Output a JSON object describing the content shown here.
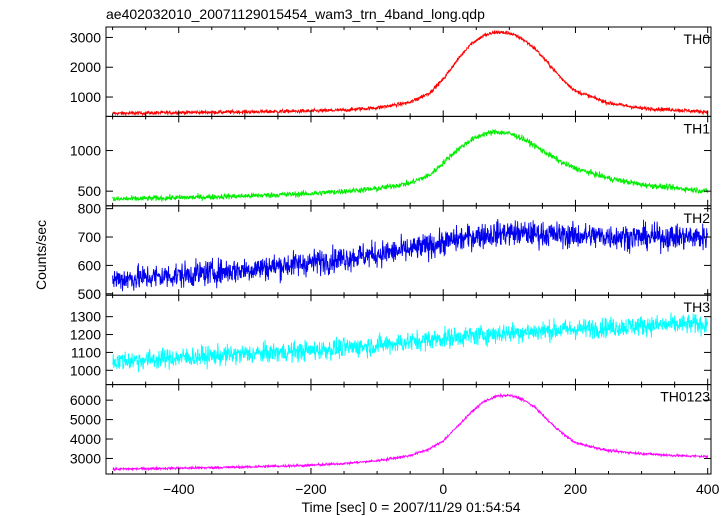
{
  "chart_data": {
    "type": "line",
    "title": "ae402032010_20071129015454_wam3_trn_4band_long.qdp",
    "xlabel": "Time [sec] 0 = 2007/11/29 01:54:54",
    "ylabel": "Counts/sec",
    "xlim": [
      -510,
      405
    ],
    "x_ticks": [
      -400,
      -200,
      0,
      200,
      400
    ],
    "grid": false,
    "panels": [
      {
        "name": "TH0",
        "color": "#ff0000",
        "ylim": [
          350,
          3350
        ],
        "y_ticks": [
          1000,
          2000,
          3000
        ],
        "noise": 45,
        "x": [
          -500,
          -400,
          -300,
          -200,
          -150,
          -100,
          -50,
          -20,
          0,
          20,
          40,
          60,
          80,
          100,
          120,
          140,
          160,
          180,
          200,
          250,
          300,
          350,
          400
        ],
        "y": [
          450,
          480,
          500,
          530,
          560,
          640,
          820,
          1150,
          1600,
          2200,
          2750,
          3050,
          3180,
          3150,
          2950,
          2600,
          2100,
          1600,
          1200,
          800,
          620,
          570,
          500
        ]
      },
      {
        "name": "TH1",
        "color": "#00ee00",
        "ylim": [
          320,
          1420
        ],
        "y_ticks": [
          500,
          1000
        ],
        "noise": 25,
        "x": [
          -500,
          -400,
          -300,
          -200,
          -150,
          -100,
          -50,
          -20,
          0,
          20,
          40,
          60,
          80,
          100,
          120,
          140,
          160,
          180,
          200,
          250,
          300,
          350,
          400
        ],
        "y": [
          400,
          420,
          440,
          470,
          500,
          530,
          600,
          700,
          850,
          1000,
          1120,
          1200,
          1230,
          1210,
          1150,
          1050,
          950,
          850,
          780,
          660,
          580,
          540,
          500
        ]
      },
      {
        "name": "TH2",
        "color": "#0000ee",
        "ylim": [
          495,
          810
        ],
        "y_ticks": [
          500,
          600,
          700,
          800
        ],
        "noise": 32,
        "x": [
          -500,
          -400,
          -300,
          -200,
          -100,
          -50,
          0,
          50,
          100,
          150,
          200,
          300,
          400
        ],
        "y": [
          550,
          565,
          585,
          610,
          640,
          655,
          680,
          705,
          715,
          710,
          705,
          700,
          700
        ]
      },
      {
        "name": "TH3",
        "color": "#00ffff",
        "ylim": [
          920,
          1420
        ],
        "y_ticks": [
          1000,
          1100,
          1200,
          1300
        ],
        "noise": 40,
        "x": [
          -500,
          -400,
          -300,
          -200,
          -100,
          0,
          100,
          200,
          300,
          400
        ],
        "y": [
          1050,
          1070,
          1090,
          1110,
          1140,
          1180,
          1210,
          1230,
          1250,
          1260
        ]
      },
      {
        "name": "TH0123",
        "color": "#ff00ff",
        "ylim": [
          2200,
          6800
        ],
        "y_ticks": [
          3000,
          4000,
          5000,
          6000
        ],
        "noise": 45,
        "x": [
          -500,
          -400,
          -300,
          -200,
          -150,
          -100,
          -50,
          -20,
          0,
          20,
          40,
          60,
          80,
          100,
          120,
          140,
          160,
          180,
          200,
          250,
          300,
          350,
          400
        ],
        "y": [
          2450,
          2500,
          2560,
          2650,
          2740,
          2880,
          3150,
          3500,
          3900,
          4600,
          5300,
          5900,
          6200,
          6250,
          6050,
          5600,
          4900,
          4300,
          3800,
          3400,
          3250,
          3150,
          3100
        ]
      }
    ]
  }
}
